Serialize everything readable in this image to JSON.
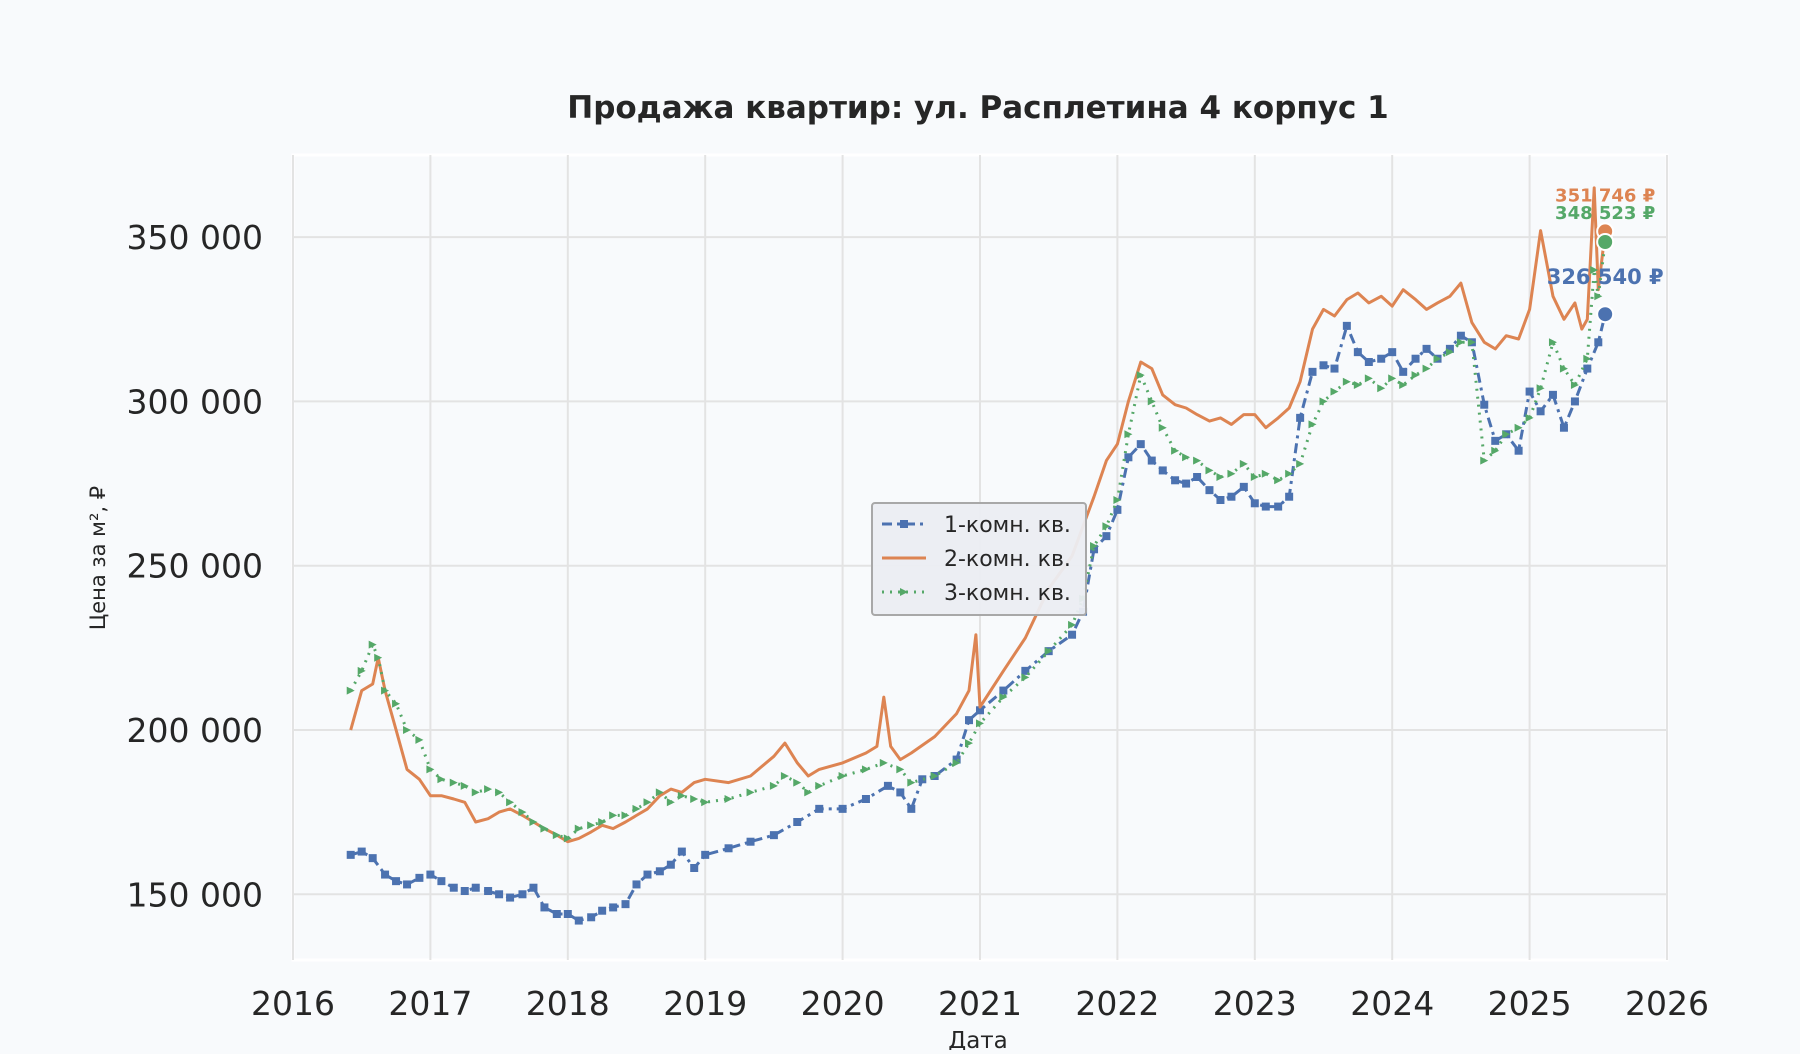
{
  "chart_data": {
    "type": "line",
    "title": "Продажа квартир: ул. Расплетина 4 корпус 1",
    "xlabel": "Дата",
    "ylabel": "Цена за м², ₽",
    "xlim": [
      2016,
      2026
    ],
    "ylim": [
      130000,
      375000
    ],
    "x_ticks": [
      "2016",
      "2017",
      "2018",
      "2019",
      "2020",
      "2021",
      "2022",
      "2023",
      "2024",
      "2025",
      "2026"
    ],
    "y_ticks": [
      {
        "value": 150000,
        "label": "150 000"
      },
      {
        "value": 200000,
        "label": "200 000"
      },
      {
        "value": 250000,
        "label": "250 000"
      },
      {
        "value": 300000,
        "label": "300 000"
      },
      {
        "value": 350000,
        "label": "350 000"
      }
    ],
    "grid": true,
    "legend_position": "center",
    "series": [
      {
        "name": "1-комн. кв.",
        "color": "#4c72b0",
        "marker": "square",
        "line_style": "dashdot",
        "end_label": "326 540 ₽",
        "end_value": 326540,
        "x": [
          2016.42,
          2016.5,
          2016.58,
          2016.67,
          2016.75,
          2016.83,
          2016.92,
          2017.0,
          2017.08,
          2017.17,
          2017.25,
          2017.33,
          2017.42,
          2017.5,
          2017.58,
          2017.67,
          2017.75,
          2017.83,
          2017.92,
          2018.0,
          2018.08,
          2018.17,
          2018.25,
          2018.33,
          2018.42,
          2018.5,
          2018.58,
          2018.67,
          2018.75,
          2018.83,
          2018.92,
          2019.0,
          2019.17,
          2019.33,
          2019.5,
          2019.67,
          2019.83,
          2020.0,
          2020.17,
          2020.33,
          2020.42,
          2020.5,
          2020.58,
          2020.67,
          2020.83,
          2020.92,
          2021.0,
          2021.17,
          2021.33,
          2021.5,
          2021.67,
          2021.75,
          2021.83,
          2021.92,
          2022.0,
          2022.08,
          2022.17,
          2022.25,
          2022.33,
          2022.42,
          2022.5,
          2022.58,
          2022.67,
          2022.75,
          2022.83,
          2022.92,
          2023.0,
          2023.08,
          2023.17,
          2023.25,
          2023.33,
          2023.42,
          2023.5,
          2023.58,
          2023.67,
          2023.75,
          2023.83,
          2023.92,
          2024.0,
          2024.08,
          2024.17,
          2024.25,
          2024.33,
          2024.42,
          2024.5,
          2024.58,
          2024.67,
          2024.75,
          2024.83,
          2024.92,
          2025.0,
          2025.08,
          2025.17,
          2025.25,
          2025.33,
          2025.42,
          2025.5,
          2025.55
        ],
        "values": [
          162000,
          163000,
          161000,
          156000,
          154000,
          153000,
          155000,
          156000,
          154000,
          152000,
          151000,
          152000,
          151000,
          150000,
          149000,
          150000,
          152000,
          146000,
          144000,
          144000,
          142000,
          143000,
          145000,
          146000,
          147000,
          153000,
          156000,
          157000,
          159000,
          163000,
          158000,
          162000,
          164000,
          166000,
          168000,
          172000,
          176000,
          176000,
          179000,
          183000,
          181000,
          176000,
          185000,
          186000,
          191000,
          203000,
          206000,
          212000,
          218000,
          224000,
          229000,
          236000,
          255000,
          259000,
          267000,
          283000,
          287000,
          282000,
          279000,
          276000,
          275000,
          277000,
          273000,
          270000,
          271000,
          274000,
          269000,
          268000,
          268000,
          271000,
          295000,
          309000,
          311000,
          310000,
          323000,
          315000,
          312000,
          313000,
          315000,
          309000,
          313000,
          316000,
          313000,
          316000,
          320000,
          318000,
          299000,
          288000,
          290000,
          285000,
          303000,
          297000,
          302000,
          292000,
          300000,
          310000,
          318000,
          326540
        ]
      },
      {
        "name": "2-комн. кв.",
        "color": "#dd8452",
        "marker": "none",
        "line_style": "solid",
        "end_label": "351 746 ₽",
        "end_value": 351746,
        "x": [
          2016.42,
          2016.5,
          2016.58,
          2016.62,
          2016.67,
          2016.75,
          2016.83,
          2016.92,
          2017.0,
          2017.08,
          2017.17,
          2017.25,
          2017.33,
          2017.42,
          2017.5,
          2017.58,
          2017.67,
          2017.75,
          2017.83,
          2017.92,
          2018.0,
          2018.08,
          2018.17,
          2018.25,
          2018.33,
          2018.42,
          2018.5,
          2018.58,
          2018.67,
          2018.75,
          2018.83,
          2018.92,
          2019.0,
          2019.17,
          2019.33,
          2019.5,
          2019.58,
          2019.67,
          2019.75,
          2019.83,
          2020.0,
          2020.17,
          2020.25,
          2020.3,
          2020.35,
          2020.42,
          2020.5,
          2020.67,
          2020.83,
          2020.92,
          2020.97,
          2021.0,
          2021.17,
          2021.33,
          2021.5,
          2021.67,
          2021.75,
          2021.83,
          2021.92,
          2022.0,
          2022.08,
          2022.17,
          2022.25,
          2022.33,
          2022.42,
          2022.5,
          2022.58,
          2022.67,
          2022.75,
          2022.83,
          2022.92,
          2023.0,
          2023.08,
          2023.17,
          2023.25,
          2023.33,
          2023.42,
          2023.5,
          2023.58,
          2023.67,
          2023.75,
          2023.83,
          2023.92,
          2024.0,
          2024.08,
          2024.17,
          2024.25,
          2024.33,
          2024.42,
          2024.5,
          2024.58,
          2024.67,
          2024.75,
          2024.83,
          2024.92,
          2025.0,
          2025.05,
          2025.08,
          2025.17,
          2025.25,
          2025.33,
          2025.38,
          2025.42,
          2025.47,
          2025.5,
          2025.55
        ],
        "values": [
          200000,
          212000,
          214000,
          222000,
          212000,
          200000,
          188000,
          185000,
          180000,
          180000,
          179000,
          178000,
          172000,
          173000,
          175000,
          176000,
          174000,
          172000,
          170000,
          168000,
          166000,
          167000,
          169000,
          171000,
          170000,
          172000,
          174000,
          176000,
          180000,
          182000,
          181000,
          184000,
          185000,
          184000,
          186000,
          192000,
          196000,
          190000,
          186000,
          188000,
          190000,
          193000,
          195000,
          210000,
          195000,
          191000,
          193000,
          198000,
          205000,
          212000,
          229000,
          207000,
          218000,
          228000,
          243000,
          253000,
          262000,
          271000,
          282000,
          287000,
          300000,
          312000,
          310000,
          302000,
          299000,
          298000,
          296000,
          294000,
          295000,
          293000,
          296000,
          296000,
          292000,
          295000,
          298000,
          306000,
          322000,
          328000,
          326000,
          331000,
          333000,
          330000,
          332000,
          329000,
          334000,
          331000,
          328000,
          330000,
          332000,
          336000,
          324000,
          318000,
          316000,
          320000,
          319000,
          328000,
          343000,
          352000,
          332000,
          325000,
          330000,
          322000,
          325000,
          365000,
          334000,
          351746
        ]
      },
      {
        "name": "3-комн. кв.",
        "color": "#55a868",
        "marker": "triangle-right",
        "line_style": "dotted",
        "end_label": "348 523 ₽",
        "end_value": 348523,
        "x": [
          2016.42,
          2016.5,
          2016.58,
          2016.62,
          2016.67,
          2016.75,
          2016.83,
          2016.92,
          2017.0,
          2017.08,
          2017.17,
          2017.25,
          2017.33,
          2017.42,
          2017.5,
          2017.58,
          2017.67,
          2017.75,
          2017.83,
          2017.92,
          2018.0,
          2018.08,
          2018.17,
          2018.25,
          2018.33,
          2018.42,
          2018.5,
          2018.58,
          2018.67,
          2018.75,
          2018.83,
          2018.92,
          2019.0,
          2019.17,
          2019.33,
          2019.5,
          2019.58,
          2019.67,
          2019.75,
          2019.83,
          2020.0,
          2020.17,
          2020.3,
          2020.42,
          2020.5,
          2020.67,
          2020.83,
          2020.92,
          2021.0,
          2021.17,
          2021.33,
          2021.5,
          2021.67,
          2021.75,
          2021.83,
          2021.92,
          2022.0,
          2022.08,
          2022.17,
          2022.25,
          2022.33,
          2022.42,
          2022.5,
          2022.58,
          2022.67,
          2022.75,
          2022.83,
          2022.92,
          2023.0,
          2023.08,
          2023.17,
          2023.25,
          2023.33,
          2023.42,
          2023.5,
          2023.58,
          2023.67,
          2023.75,
          2023.83,
          2023.92,
          2024.0,
          2024.08,
          2024.17,
          2024.25,
          2024.33,
          2024.42,
          2024.5,
          2024.58,
          2024.67,
          2024.75,
          2024.83,
          2024.92,
          2025.0,
          2025.08,
          2025.17,
          2025.25,
          2025.33,
          2025.42,
          2025.47,
          2025.5,
          2025.55
        ],
        "values": [
          212000,
          218000,
          226000,
          222000,
          212000,
          208000,
          200000,
          197000,
          188000,
          185000,
          184000,
          183000,
          181000,
          182000,
          181000,
          178000,
          175000,
          172000,
          170000,
          168000,
          167000,
          170000,
          171000,
          172000,
          174000,
          174000,
          176000,
          178000,
          181000,
          178000,
          180000,
          179000,
          178000,
          179000,
          181000,
          183000,
          186000,
          184000,
          181000,
          183000,
          186000,
          188000,
          190000,
          188000,
          184000,
          186000,
          190000,
          196000,
          202000,
          210000,
          216000,
          224000,
          232000,
          240000,
          256000,
          262000,
          270000,
          290000,
          308000,
          300000,
          292000,
          285000,
          283000,
          282000,
          279000,
          277000,
          278000,
          281000,
          277000,
          278000,
          276000,
          278000,
          281000,
          293000,
          300000,
          303000,
          306000,
          305000,
          307000,
          304000,
          307000,
          305000,
          308000,
          310000,
          313000,
          315000,
          318000,
          318000,
          282000,
          285000,
          290000,
          292000,
          295000,
          304000,
          318000,
          310000,
          305000,
          313000,
          340000,
          332000,
          348523
        ]
      }
    ]
  }
}
